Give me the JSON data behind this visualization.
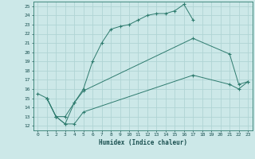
{
  "xlabel": "Humidex (Indice chaleur)",
  "bg_color": "#cce8e8",
  "grid_color": "#b0d4d4",
  "line_color": "#2e7b6e",
  "xlim": [
    -0.5,
    23.5
  ],
  "ylim": [
    11.5,
    25.5
  ],
  "xticks": [
    0,
    1,
    2,
    3,
    4,
    5,
    6,
    7,
    8,
    9,
    10,
    11,
    12,
    13,
    14,
    15,
    16,
    17,
    18,
    19,
    20,
    21,
    22,
    23
  ],
  "yticks": [
    12,
    13,
    14,
    15,
    16,
    17,
    18,
    19,
    20,
    21,
    22,
    23,
    24,
    25
  ],
  "line1_x": [
    0,
    1,
    2,
    3,
    4,
    5,
    6,
    7,
    8,
    9,
    10,
    11,
    12,
    13,
    14,
    15,
    16,
    17
  ],
  "line1_y": [
    15.5,
    15.0,
    13.0,
    12.2,
    14.5,
    16.0,
    19.0,
    21.0,
    22.5,
    22.8,
    23.0,
    23.5,
    24.0,
    24.2,
    24.2,
    24.5,
    25.2,
    23.5
  ],
  "line2_x": [
    1,
    2,
    3,
    4,
    5,
    17,
    21,
    22,
    23
  ],
  "line2_y": [
    15.0,
    13.0,
    13.0,
    14.5,
    15.8,
    21.5,
    19.8,
    16.5,
    16.8
  ],
  "line3_x": [
    1,
    2,
    3,
    4,
    5,
    17,
    21,
    22,
    23
  ],
  "line3_y": [
    15.0,
    13.0,
    12.2,
    12.2,
    13.5,
    17.5,
    16.5,
    16.0,
    16.8
  ]
}
